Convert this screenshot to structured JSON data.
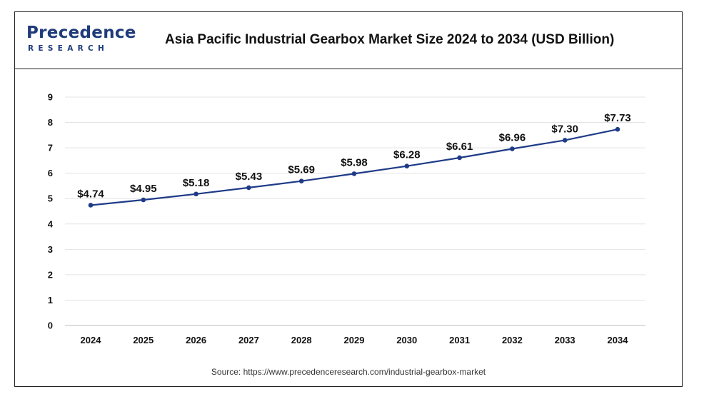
{
  "header": {
    "logo_main": "Precedence",
    "logo_sub": "RESEARCH",
    "title": "Asia Pacific Industrial Gearbox Market Size 2024 to 2034 (USD Billion)"
  },
  "footer": {
    "source": "Source: https://www.precedenceresearch.com/industrial-gearbox-market"
  },
  "colors": {
    "line": "#1f3b88",
    "brand": "#1f3b7a",
    "grid": "#e3e3e3"
  },
  "chart_data": {
    "type": "line",
    "title": "Asia Pacific Industrial Gearbox Market Size 2024 to 2034 (USD Billion)",
    "xlabel": "",
    "ylabel": "",
    "categories": [
      "2024",
      "2025",
      "2026",
      "2027",
      "2028",
      "2029",
      "2030",
      "2031",
      "2032",
      "2033",
      "2034"
    ],
    "series": [
      {
        "values": [
          4.74,
          4.95,
          5.18,
          5.43,
          5.69,
          5.98,
          6.28,
          6.61,
          6.96,
          7.3,
          7.73
        ],
        "labels": [
          "$4.74",
          "$4.95",
          "$5.18",
          "$5.43",
          "$5.69",
          "$5.98",
          "$6.28",
          "$6.61",
          "$6.96",
          "$7.30",
          "$7.73"
        ]
      }
    ],
    "ylim": [
      0,
      9
    ],
    "yticks": [
      "0",
      "1",
      "2",
      "3",
      "4",
      "5",
      "6",
      "7",
      "8",
      "9"
    ],
    "grid": true,
    "legend": "none"
  }
}
